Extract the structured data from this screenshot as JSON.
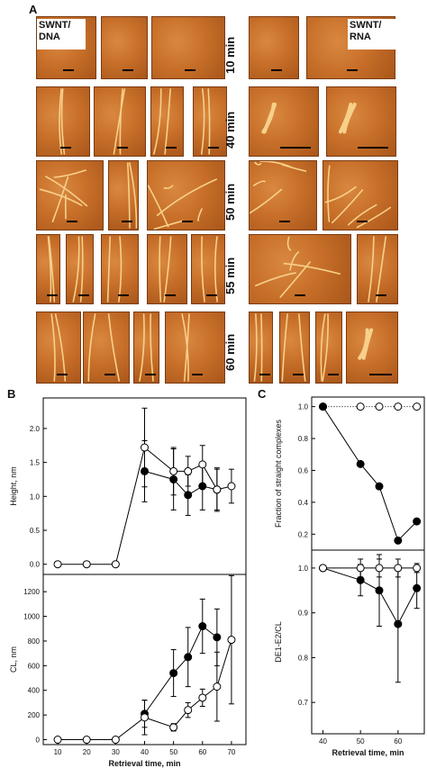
{
  "panel_labels": {
    "a": "A",
    "b": "B",
    "c": "C"
  },
  "afm": {
    "left_label": "SWNT/\nDNA",
    "right_label": "SWNT/\nRNA",
    "time_labels": [
      "10 min",
      "40 min",
      "50 min",
      "55 min",
      "60 min"
    ]
  },
  "chart_data": [
    {
      "type": "line",
      "panel": "B-top",
      "ylabel": "Height, nm",
      "xlabel": "",
      "xlim": [
        5,
        75
      ],
      "ylim": [
        -0.15,
        2.45
      ],
      "yticks": [
        "0.0",
        "0.5",
        "1.0",
        "1.5",
        "2.0"
      ],
      "ytick_values": [
        0,
        0.5,
        1.0,
        1.5,
        2.0
      ],
      "series": [
        {
          "marker": "filled",
          "x": [
            40,
            50,
            55,
            60,
            65
          ],
          "y": [
            1.37,
            1.25,
            1.02,
            1.15,
            1.1
          ],
          "err": [
            0.45,
            0.45,
            0.3,
            0.35,
            0.3
          ]
        },
        {
          "marker": "open",
          "x": [
            10,
            20,
            30,
            40,
            50,
            55,
            60,
            65,
            70
          ],
          "y": [
            0,
            0,
            0,
            1.72,
            1.37,
            1.37,
            1.47,
            1.1,
            1.15
          ],
          "err": [
            0,
            0,
            0,
            0.58,
            0.35,
            0.22,
            0.28,
            0.32,
            0.25
          ]
        }
      ]
    },
    {
      "type": "line",
      "panel": "B-bottom",
      "ylabel": "CL, nm",
      "xlabel": "Retrieval time, min",
      "xlim": [
        5,
        75
      ],
      "ylim": [
        -40,
        1340
      ],
      "xticks": [
        "10",
        "20",
        "30",
        "40",
        "50",
        "60",
        "70"
      ],
      "xtick_values": [
        10,
        20,
        30,
        40,
        50,
        60,
        70
      ],
      "yticks": [
        "0",
        "200",
        "400",
        "600",
        "800",
        "1000",
        "1200"
      ],
      "ytick_values": [
        0,
        200,
        400,
        600,
        800,
        1000,
        1200
      ],
      "series": [
        {
          "marker": "filled",
          "x": [
            40,
            50,
            55,
            60,
            65
          ],
          "y": [
            210,
            540,
            670,
            920,
            830
          ],
          "err": [
            110,
            190,
            240,
            220,
            230
          ]
        },
        {
          "marker": "open",
          "x": [
            10,
            20,
            30,
            40,
            50,
            55,
            60,
            65,
            70
          ],
          "y": [
            0,
            0,
            0,
            180,
            100,
            240,
            340,
            430,
            810
          ],
          "err": [
            0,
            0,
            0,
            140,
            30,
            60,
            70,
            280,
            520
          ]
        }
      ]
    },
    {
      "type": "line",
      "panel": "C-top",
      "ylabel": "Fraction of straight complexes",
      "xlabel": "",
      "xlim": [
        37,
        67
      ],
      "ylim": [
        0.1,
        1.06
      ],
      "yticks": [
        "0.2",
        "0.4",
        "0.6",
        "0.8",
        "1.0"
      ],
      "ytick_values": [
        0.2,
        0.4,
        0.6,
        0.8,
        1.0
      ],
      "series": [
        {
          "marker": "open",
          "dotted": true,
          "x": [
            40,
            50,
            55,
            60,
            65
          ],
          "y": [
            1.0,
            1.0,
            1.0,
            1.0,
            1.0
          ]
        },
        {
          "marker": "filled",
          "x": [
            40,
            50,
            55,
            60,
            65
          ],
          "y": [
            1.0,
            0.64,
            0.5,
            0.16,
            0.28
          ]
        }
      ]
    },
    {
      "type": "line",
      "panel": "C-bottom",
      "ylabel": "DE1-E2/CL",
      "xlabel": "Retrieval time, min",
      "xlim": [
        37,
        67
      ],
      "ylim": [
        0.63,
        1.04
      ],
      "xticks": [
        "40",
        "50",
        "60"
      ],
      "xtick_values": [
        40,
        50,
        60
      ],
      "yticks": [
        "0.7",
        "0.8",
        "0.9",
        "1.0"
      ],
      "ytick_values": [
        0.7,
        0.8,
        0.9,
        1.0
      ],
      "series": [
        {
          "marker": "filled",
          "x": [
            40,
            50,
            55,
            60,
            65
          ],
          "y": [
            1.0,
            0.973,
            0.95,
            0.875,
            0.955
          ],
          "err": [
            0,
            0.035,
            0.08,
            0.13,
            0.045
          ]
        },
        {
          "marker": "open",
          "x": [
            40,
            50,
            55,
            60,
            65
          ],
          "y": [
            1.0,
            1.0,
            1.0,
            1.0,
            1.0
          ],
          "err": [
            0,
            0.02,
            0.02,
            0.02,
            0.01
          ]
        }
      ]
    }
  ]
}
